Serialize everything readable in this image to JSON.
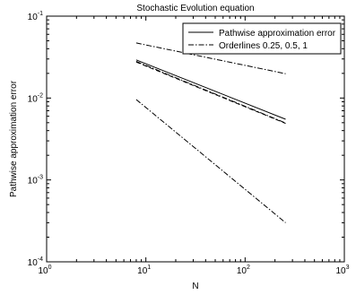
{
  "chart_data": {
    "type": "line",
    "title": "Stochastic Evolution equation",
    "xlabel": "N",
    "ylabel": "Pathwise approximation error",
    "xscale": "log",
    "yscale": "log",
    "xlim": [
      1,
      1000
    ],
    "ylim": [
      0.0001,
      0.1
    ],
    "grid": false,
    "legend_position": "top-right",
    "x_ticks": [
      {
        "value": 1,
        "base": "10",
        "exp": "0"
      },
      {
        "value": 10,
        "base": "10",
        "exp": "1"
      },
      {
        "value": 100,
        "base": "10",
        "exp": "2"
      },
      {
        "value": 1000,
        "base": "10",
        "exp": "3"
      }
    ],
    "y_ticks": [
      {
        "value": 0.0001,
        "base": "10",
        "exp": "-4"
      },
      {
        "value": 0.001,
        "base": "10",
        "exp": "-3"
      },
      {
        "value": 0.01,
        "base": "10",
        "exp": "-2"
      },
      {
        "value": 0.1,
        "base": "10",
        "exp": "-1"
      }
    ],
    "legend": [
      {
        "label": "Pathwise approximation error",
        "style": "solid"
      },
      {
        "label": "Orderlines 0.25, 0.5, 1",
        "style": "dashdot"
      }
    ],
    "series": [
      {
        "style": "solid",
        "legend_index": 0,
        "x": [
          8,
          256
        ],
        "y": [
          0.0292,
          0.0055
        ]
      },
      {
        "style": "dashed",
        "legend_index": null,
        "x": [
          8,
          256
        ],
        "y": [
          0.0275,
          0.0049
        ]
      },
      {
        "style": "dashdot",
        "legend_index": 1,
        "x": [
          8,
          256
        ],
        "y": [
          0.047,
          0.0198
        ]
      },
      {
        "style": "dashdot",
        "legend_index": null,
        "x": [
          8,
          256
        ],
        "y": [
          0.028,
          0.00495
        ]
      },
      {
        "style": "dashdot",
        "legend_index": null,
        "x": [
          8,
          256
        ],
        "y": [
          0.0096,
          0.0003
        ]
      }
    ]
  }
}
